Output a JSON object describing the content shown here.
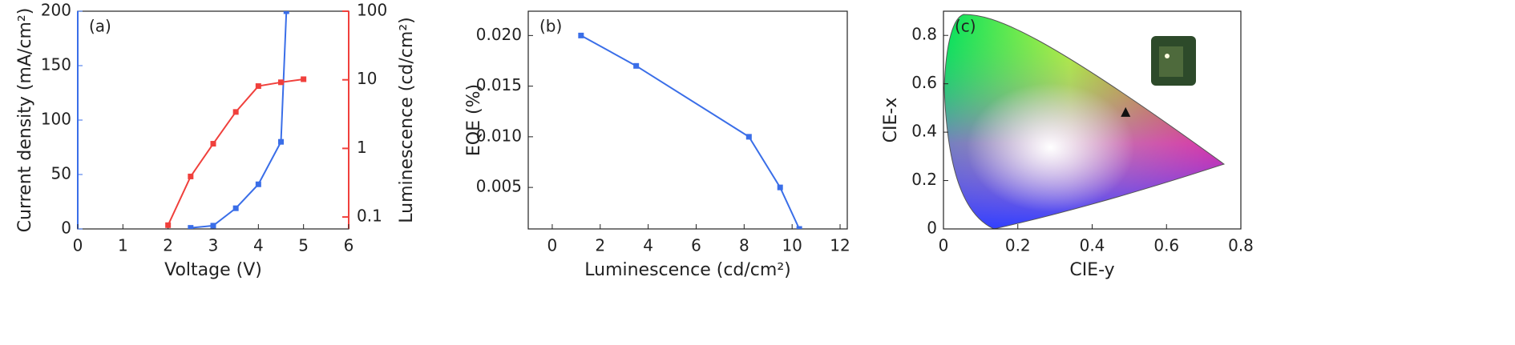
{
  "chart_data": [
    {
      "type": "line",
      "annotation": "(a)",
      "xlabel": "Voltage (V)",
      "ylabel": "Current density (mA/cm²)",
      "y2label": "Luminescence (cd/cm²)",
      "xlim": [
        0,
        6
      ],
      "xticks": [
        0,
        1,
        2,
        3,
        4,
        5,
        6
      ],
      "ylim": [
        0,
        200
      ],
      "yticks": [
        0,
        50,
        100,
        150,
        200
      ],
      "ycolor": "#3a6ee8",
      "y2lim": [
        0.067,
        100
      ],
      "y2ticks": [
        0.1,
        1,
        10,
        100
      ],
      "y2scale": "log",
      "y2color": "#f0403c",
      "series": [
        {
          "color": "#3a6ee8",
          "x": [
            2.5,
            3,
            3.5,
            4,
            4.5,
            4.62
          ],
          "values": [
            1,
            3,
            19,
            41,
            80,
            200
          ]
        },
        {
          "color": "#f0403c",
          "axis": "y2",
          "x": [
            2,
            2.5,
            3,
            3.5,
            4,
            4.5,
            5
          ],
          "values": [
            0.076,
            0.39,
            1.17,
            3.4,
            8.1,
            9.2,
            10.2
          ]
        }
      ]
    },
    {
      "type": "line",
      "annotation": "(b)",
      "xlabel": "Luminescence (cd/cm²)",
      "ylabel": "EQE (%)",
      "xlim": [
        -1,
        12.3
      ],
      "xticks": [
        0,
        2,
        4,
        6,
        8,
        10,
        12
      ],
      "ylim": [
        0.0009,
        0.0224
      ],
      "yticks": [
        0.005,
        {
          "value": 0.01,
          "label": "0.010"
        },
        0.015,
        {
          "value": 0.02,
          "label": "0.020"
        }
      ],
      "series": [
        {
          "color": "#3a6ee8",
          "x": [
            1.2,
            3.5,
            8.2,
            9.5,
            10.3
          ],
          "values": [
            0.02,
            0.017,
            0.01,
            0.005,
            0.0009
          ]
        }
      ]
    },
    {
      "type": "scatter",
      "annotation": "(c)",
      "xlabel": "CIE-y",
      "ylabel": "CIE-x",
      "xlim": [
        0,
        0.8
      ],
      "xticks": [
        0,
        0.2,
        0.4,
        0.6,
        0.8
      ],
      "ylim": [
        0,
        0.9
      ],
      "yticks": [
        0,
        0.2,
        0.4,
        0.6,
        0.8
      ],
      "series": [
        {
          "color": "#111",
          "x": [
            0.49
          ],
          "values": [
            0.48
          ]
        }
      ]
    }
  ]
}
